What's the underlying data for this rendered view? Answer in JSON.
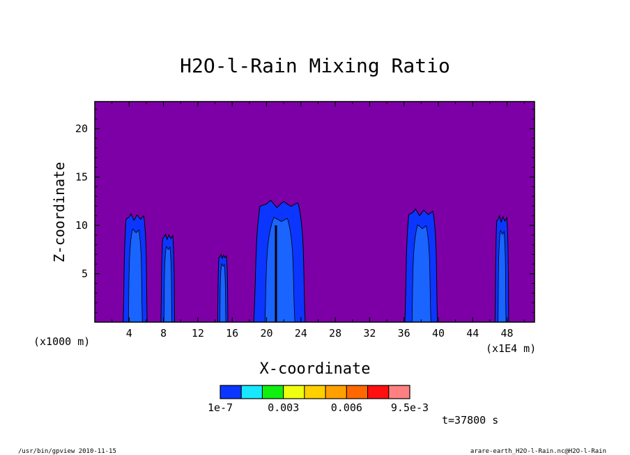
{
  "chart_data": {
    "type": "heatmap",
    "title": "H2O-l-Rain Mixing Ratio",
    "xlabel": "X-coordinate",
    "ylabel": "Z-coordinate",
    "x_unit_left": "(x1000 m)",
    "x_unit_right": "(x1E4 m)",
    "xlim": [
      0,
      51.2
    ],
    "ylim": [
      0,
      22.8
    ],
    "x_ticks": [
      4,
      8,
      12,
      16,
      20,
      24,
      28,
      32,
      36,
      40,
      44,
      48
    ],
    "x_tick_labels": [
      "4",
      "8",
      "12",
      "16",
      "20",
      "24",
      "28",
      "32",
      "36",
      "40",
      "44",
      "48"
    ],
    "y_ticks": [
      5,
      10,
      15,
      20
    ],
    "y_tick_labels": [
      "5",
      "10",
      "15",
      "20"
    ],
    "background_color": "#7d00a6",
    "contour_fill_colors": [
      "#0b36ff",
      "#1a64ff"
    ],
    "contour_line_color": "#000000",
    "rain_columns": [
      {
        "x_left": 3.3,
        "x_right": 6.1,
        "top": 11.2
      },
      {
        "x_left": 7.7,
        "x_right": 9.3,
        "top": 9.1
      },
      {
        "x_left": 14.3,
        "x_right": 15.5,
        "top": 7.0
      },
      {
        "x_left": 18.5,
        "x_right": 24.5,
        "top": 12.6
      },
      {
        "x_left": 36.1,
        "x_right": 39.9,
        "top": 11.7
      },
      {
        "x_left": 46.6,
        "x_right": 48.2,
        "top": 11.0
      }
    ],
    "colorbar": {
      "colors": [
        "#0b36ff",
        "#18e8ff",
        "#10f010",
        "#f0ff10",
        "#ffd000",
        "#ffa000",
        "#ff6800",
        "#ff1010",
        "#ff8080"
      ],
      "tick_labels": [
        "1e-7",
        "0.003",
        "0.006",
        "9.5e-3"
      ]
    },
    "time_label": "t=37800 s"
  },
  "footer": {
    "left": "/usr/bin/gpview  2010-11-15",
    "right": "arare-earth_H2O-l-Rain.nc@H2O-l-Rain"
  }
}
